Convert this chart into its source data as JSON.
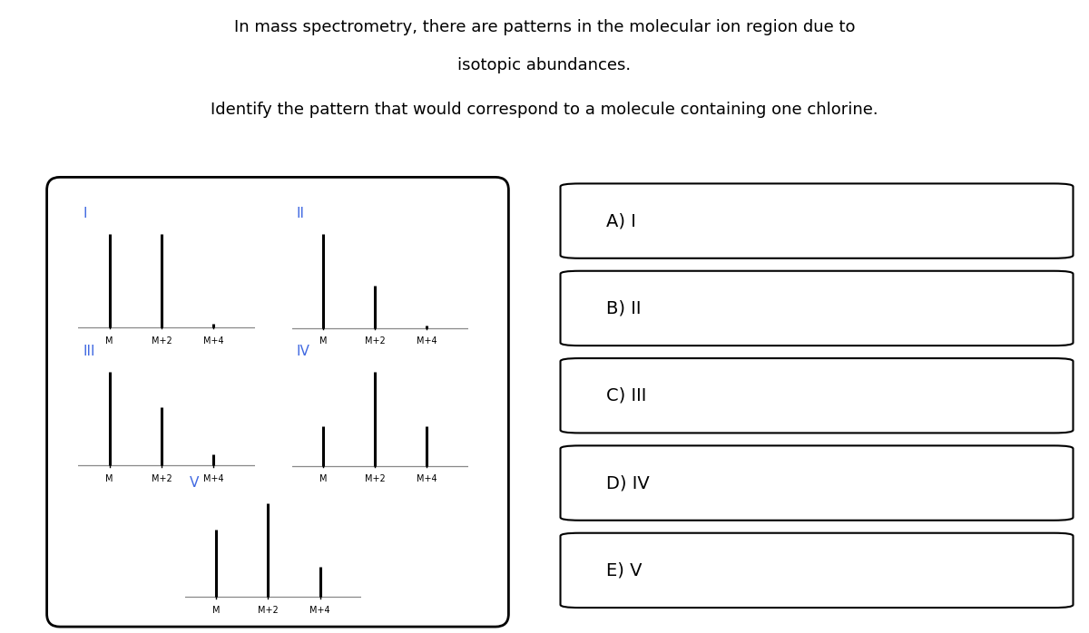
{
  "title_line1": "In mass spectrometry, there are patterns in the molecular ion region due to",
  "title_line2": "isotopic abundances.",
  "subtitle": "Identify the pattern that would correspond to a molecule containing one chlorine.",
  "background_color": "#ffffff",
  "blue_color": "#4169E1",
  "patterns": {
    "I": {
      "M": 0.88,
      "M2": 0.88,
      "M4": 0.03
    },
    "II": {
      "M": 1.0,
      "M2": 0.45,
      "M4": 0.03
    },
    "III": {
      "M": 0.88,
      "M2": 0.55,
      "M4": 0.1
    },
    "IV": {
      "M": 0.42,
      "M2": 1.0,
      "M4": 0.42
    },
    "V": {
      "M": 0.72,
      "M2": 1.0,
      "M4": 0.32
    }
  },
  "choices": [
    "A) I",
    "B) II",
    "C) III",
    "D) IV",
    "E) V"
  ]
}
